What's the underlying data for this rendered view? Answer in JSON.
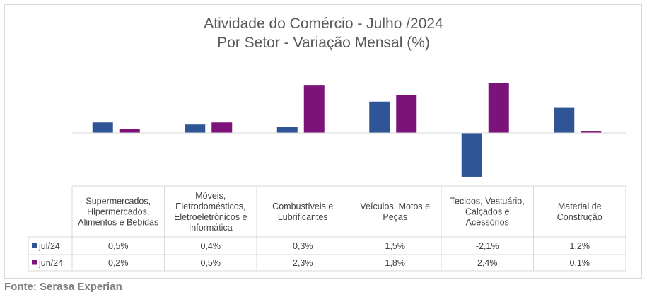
{
  "chart_data": {
    "type": "bar",
    "title": "Atividade do Comércio - Julho /2024",
    "subtitle": "Por Setor - Variação Mensal (%)",
    "categories": [
      [
        "Supermercados,",
        "Hipermercados,",
        "Alimentos e Bebidas"
      ],
      [
        "Móveis,",
        "Eletrodomésticos,",
        "Eletroeletrônicos e",
        "Informática"
      ],
      [
        "Combustíveis e",
        "Lubrificantes"
      ],
      [
        "Veículos, Motos e",
        "Peças"
      ],
      [
        "Tecidos, Vestuário,",
        "Calçados e",
        "Acessórios"
      ],
      [
        "Material de",
        "Construção"
      ]
    ],
    "series": [
      {
        "name": "jul/24",
        "color": "#2f5597",
        "values": [
          0.5,
          0.4,
          0.3,
          1.5,
          -2.1,
          1.2
        ],
        "labels": [
          "0,5%",
          "0,4%",
          "0,3%",
          "1,5%",
          "-2,1%",
          "1,2%"
        ]
      },
      {
        "name": "jun/24",
        "color": "#7b137b",
        "values": [
          0.2,
          0.5,
          2.3,
          1.8,
          2.4,
          0.1
        ],
        "labels": [
          "0,2%",
          "0,5%",
          "2,3%",
          "1,8%",
          "2,4%",
          "0,1%"
        ]
      }
    ],
    "ylim": [
      -2.1,
      2.4
    ],
    "grid": false,
    "legend": "data-table"
  },
  "footer": {
    "source": "Fonte: Serasa Experian"
  }
}
